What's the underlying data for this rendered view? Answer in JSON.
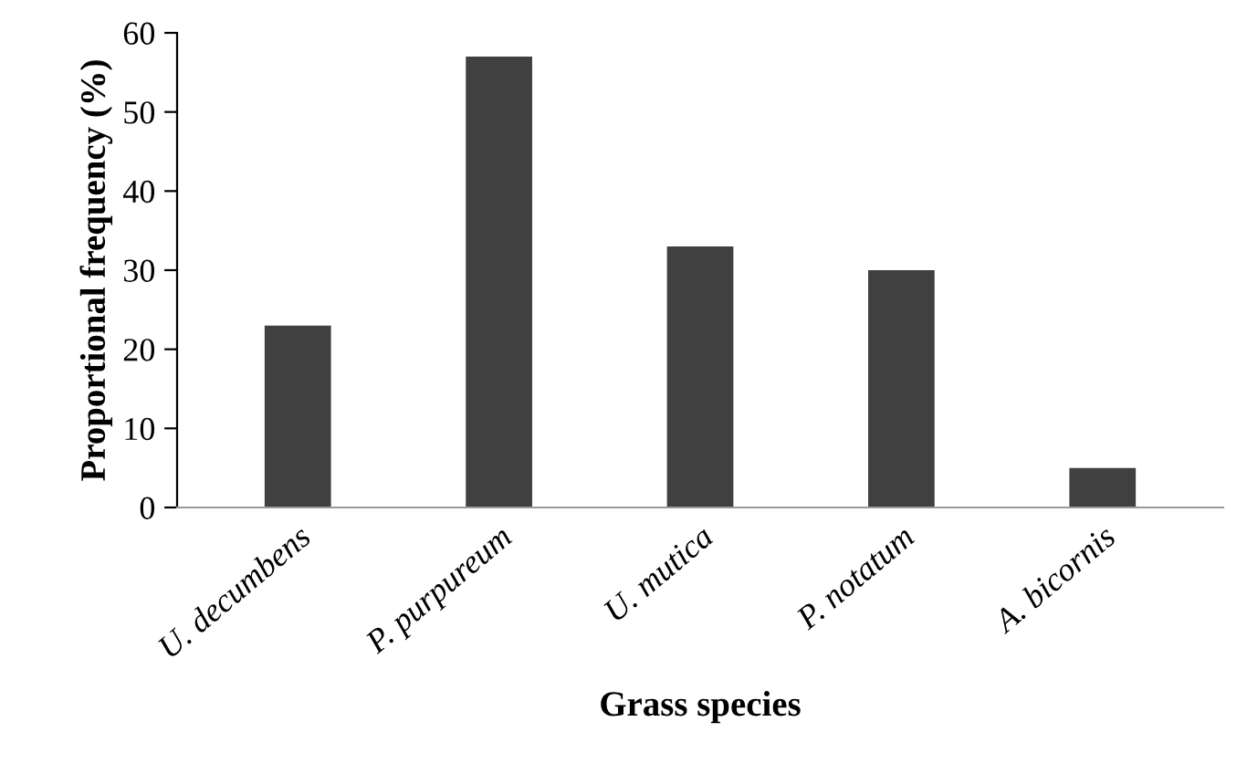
{
  "chart_data": {
    "type": "bar",
    "xlabel": "Grass species",
    "ylabel": "Proportional frequency (%)",
    "categories": [
      "U. decumbens",
      "P. purpureum",
      "U. mutica",
      "P. notatum",
      "A. bicornis"
    ],
    "values": [
      23,
      57,
      33,
      30,
      5
    ],
    "color": "#404040",
    "ylim": [
      0,
      60
    ],
    "yticks": [
      0,
      10,
      20,
      30,
      40,
      50,
      60
    ],
    "grid": false
  }
}
